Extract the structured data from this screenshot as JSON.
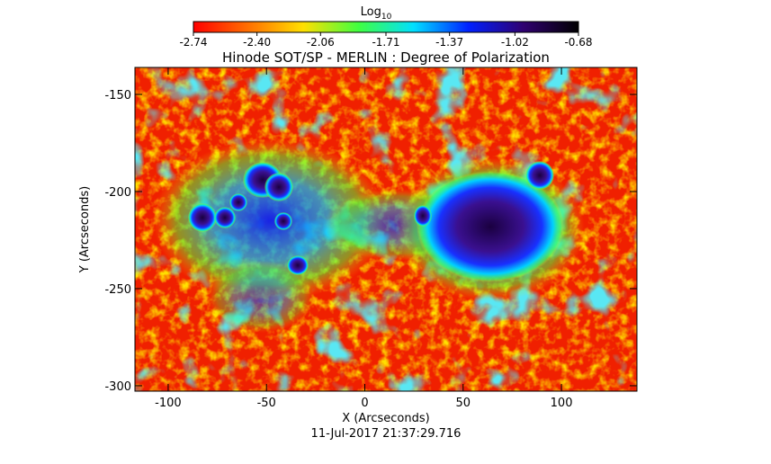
{
  "chart_data": {
    "type": "image",
    "title": "Hinode SOT/SP - MERLIN : Degree of Polarization",
    "x_label": "X (Arcseconds)",
    "y_label": "Y (Arcseconds)",
    "timestamp": "11-Jul-2017 21:37:29.716",
    "xlim": [
      -116.9,
      138.4
    ],
    "ylim": [
      -302.8,
      -136.1
    ],
    "xticks": [
      -100,
      -50,
      0,
      50,
      100
    ],
    "yticks": [
      -150,
      -200,
      -250,
      -300
    ],
    "colorbar": {
      "label": "Log",
      "label_sub": "10",
      "lim": [
        -2.74,
        -0.68
      ],
      "ticks": [
        -2.74,
        {
          "value": -2.4,
          "label": "-2.40"
        },
        -2.06,
        -1.71,
        -1.37,
        -1.02,
        -0.68
      ],
      "colormap": [
        "#ff0000",
        "#ff7000",
        "#ffe000",
        "#40ff40",
        "#00e0ff",
        "#0020ff",
        "#300070",
        "#000000"
      ]
    }
  }
}
